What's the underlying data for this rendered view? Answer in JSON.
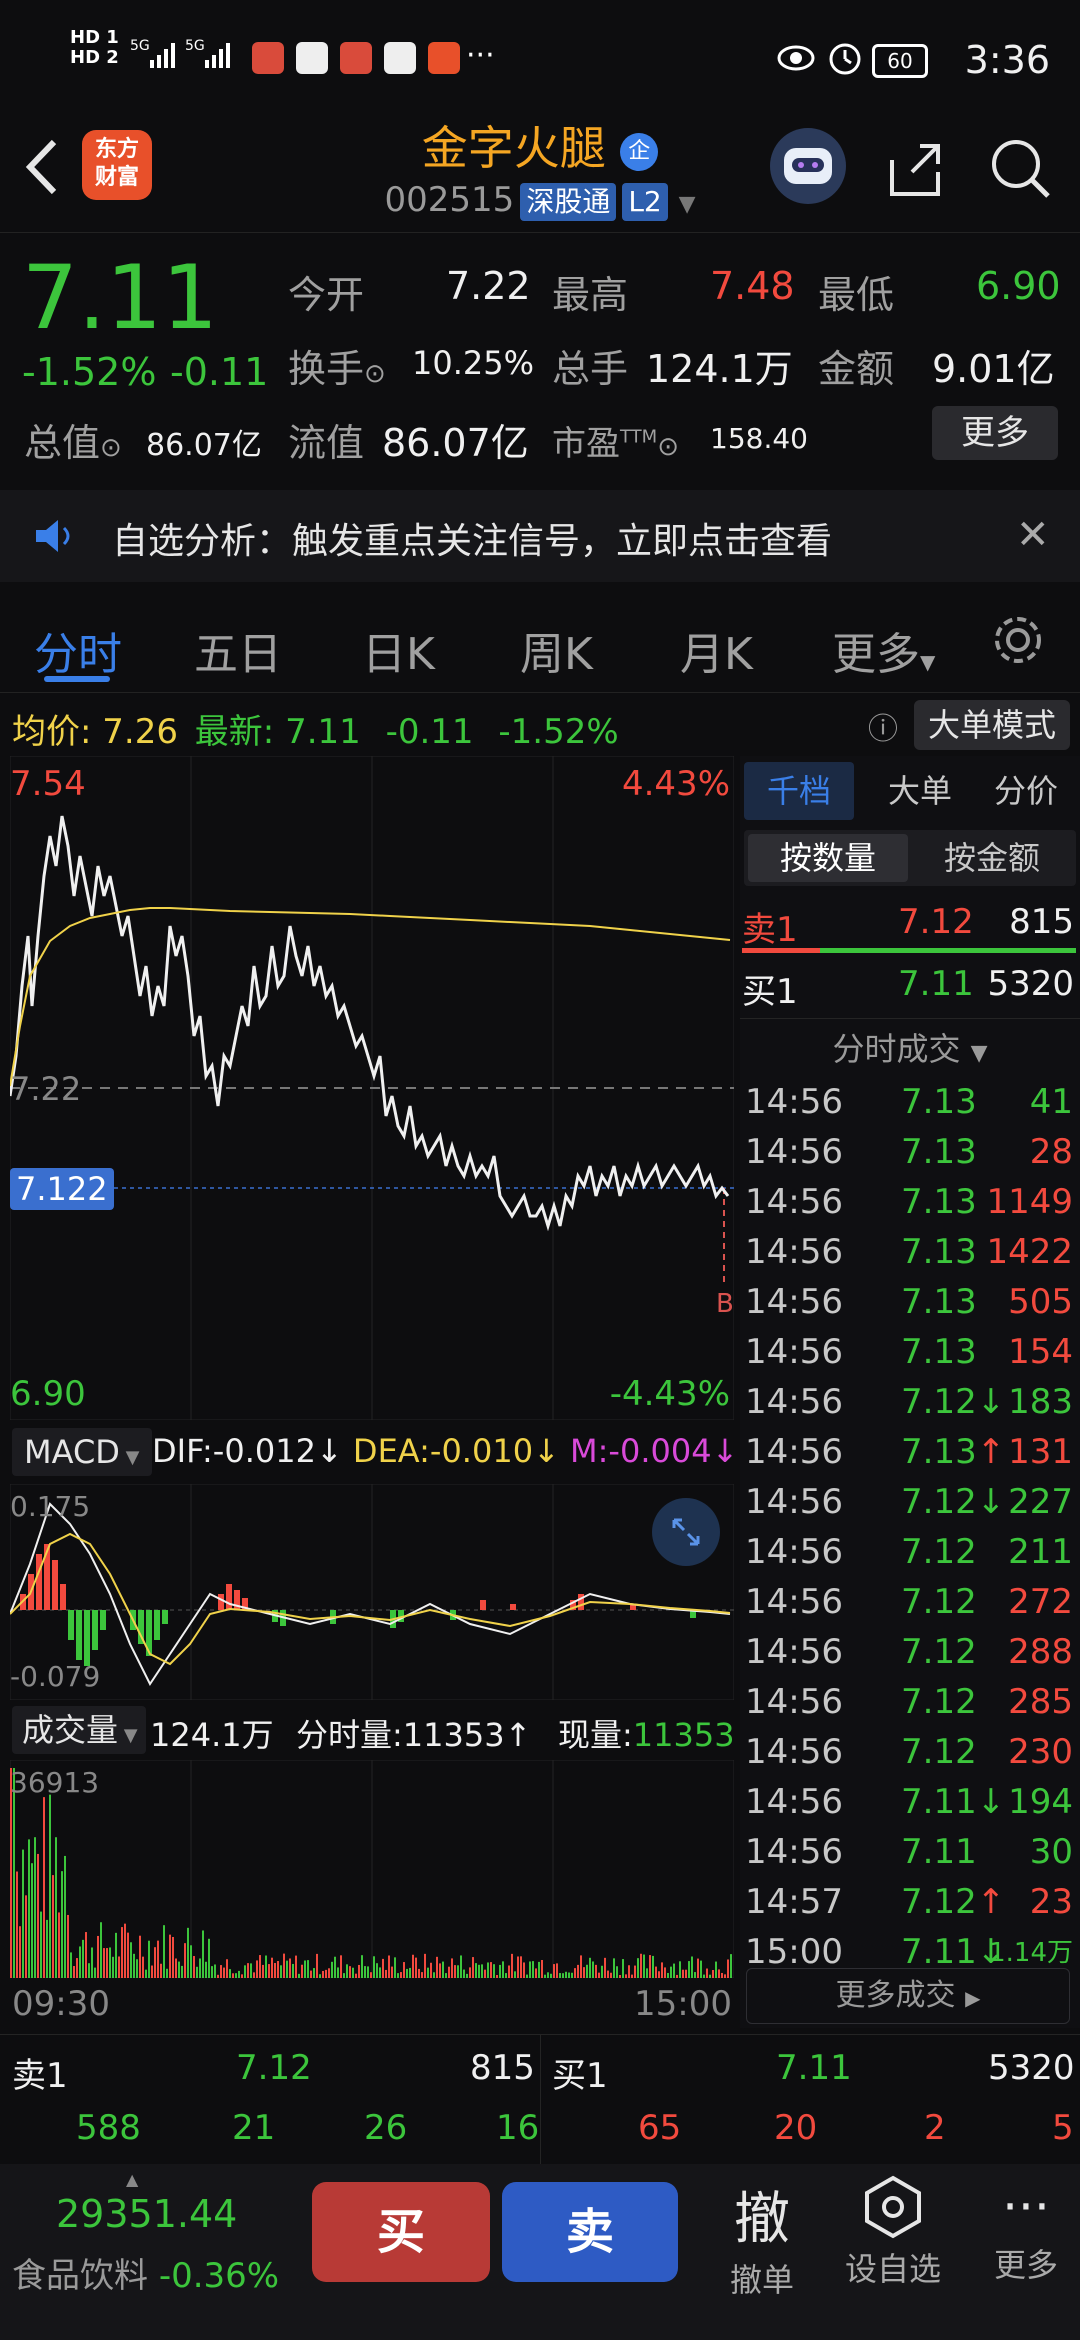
{
  "status_bar": {
    "time": "3:36",
    "battery": "60",
    "hd1": "HD 1",
    "hd2": "HD 2",
    "signal": "5G",
    "dots": "···"
  },
  "header": {
    "logo": "东方\n财富",
    "stock_name": "金字火腿",
    "name_badge": "企",
    "code": "002515",
    "market_tag": "深股通",
    "level_tag": "L2"
  },
  "quote": {
    "price": "7.11",
    "change_pct": "-1.52%",
    "change": "-0.11",
    "open_label": "今开",
    "open": "7.22",
    "high_label": "最高",
    "high": "7.48",
    "low_label": "最低",
    "low": "6.90",
    "turnover_label": "换手",
    "turnover": "10.25%",
    "volume_label": "总手",
    "volume": "124.1万",
    "amount_label": "金额",
    "amount": "9.01亿",
    "total_value_label": "总值",
    "total_value": "86.07亿",
    "float_value_label": "流值",
    "float_value": "86.07亿",
    "pe_label": "市盈",
    "pe_sup": "TTM",
    "pe": "158.40",
    "more_button": "更多"
  },
  "notice": {
    "text": "自选分析：触发重点关注信号，立即点击查看"
  },
  "tabs": [
    {
      "label": "分时",
      "active": true
    },
    {
      "label": "五日"
    },
    {
      "label": "日K"
    },
    {
      "label": "周K"
    },
    {
      "label": "月K"
    },
    {
      "label": "更多"
    }
  ],
  "info_bar": {
    "avg_label": "均价:",
    "avg": "7.26",
    "latest_label": "最新:",
    "latest": "7.11",
    "change": "-0.11",
    "change_pct": "-1.52%",
    "mode_button": "大单模式"
  },
  "chart": {
    "y_top": "7.54",
    "pct_top": "4.43%",
    "y_mid": "7.22",
    "cursor_price": "7.122",
    "y_bottom": "6.90",
    "pct_bottom": "-4.43%",
    "b_marker": "B",
    "time_start": "09:30",
    "time_end": "15:00"
  },
  "macd": {
    "selector": "MACD",
    "dif": "DIF:-0.012",
    "dea": "DEA:-0.010",
    "m": "M:-0.004",
    "top": "0.175",
    "bottom": "-0.079"
  },
  "volume": {
    "selector": "成交量",
    "total": "124.1万",
    "tick_vol": "分时量:11353↑",
    "now_label": "现量:",
    "now": "11353",
    "top": "36913"
  },
  "right_panel": {
    "tabs": [
      "千档",
      "大单",
      "分价"
    ],
    "sub_tabs": [
      "按数量",
      "按金额"
    ],
    "sell1": {
      "label": "卖1",
      "price": "7.12",
      "vol": "815"
    },
    "buy1": {
      "label": "买1",
      "price": "7.11",
      "vol": "5320"
    },
    "trades_header": "分时成交",
    "more_trades": "更多成交",
    "trades": [
      {
        "t": "14:56",
        "p": "7.13",
        "v": "41",
        "vc": "green",
        "a": ""
      },
      {
        "t": "14:56",
        "p": "7.13",
        "v": "28",
        "vc": "red",
        "a": ""
      },
      {
        "t": "14:56",
        "p": "7.13",
        "v": "1149",
        "vc": "red",
        "a": ""
      },
      {
        "t": "14:56",
        "p": "7.13",
        "v": "1422",
        "vc": "red",
        "a": ""
      },
      {
        "t": "14:56",
        "p": "7.13",
        "v": "505",
        "vc": "red",
        "a": ""
      },
      {
        "t": "14:56",
        "p": "7.13",
        "v": "154",
        "vc": "red",
        "a": ""
      },
      {
        "t": "14:56",
        "p": "7.12",
        "v": "183",
        "vc": "green",
        "a": "↓"
      },
      {
        "t": "14:56",
        "p": "7.13",
        "v": "131",
        "vc": "red",
        "a": "↑"
      },
      {
        "t": "14:56",
        "p": "7.12",
        "v": "227",
        "vc": "green",
        "a": "↓"
      },
      {
        "t": "14:56",
        "p": "7.12",
        "v": "211",
        "vc": "green",
        "a": ""
      },
      {
        "t": "14:56",
        "p": "7.12",
        "v": "272",
        "vc": "red",
        "a": ""
      },
      {
        "t": "14:56",
        "p": "7.12",
        "v": "288",
        "vc": "red",
        "a": ""
      },
      {
        "t": "14:56",
        "p": "7.12",
        "v": "285",
        "vc": "red",
        "a": ""
      },
      {
        "t": "14:56",
        "p": "7.12",
        "v": "230",
        "vc": "red",
        "a": ""
      },
      {
        "t": "14:56",
        "p": "7.11",
        "v": "194",
        "vc": "green",
        "a": "↓"
      },
      {
        "t": "14:56",
        "p": "7.11",
        "v": "30",
        "vc": "green",
        "a": ""
      },
      {
        "t": "14:57",
        "p": "7.12",
        "v": "23",
        "vc": "red",
        "a": "↑"
      },
      {
        "t": "15:00",
        "p": "7.11",
        "v": "1.14万",
        "vc": "green",
        "a": "↓"
      }
    ]
  },
  "order_book_bottom": {
    "sell_label": "卖1",
    "sell_price": "7.12",
    "sell_vol": "815",
    "buy_label": "买1",
    "buy_price": "7.11",
    "buy_vol": "5320",
    "sell_nums": [
      "588",
      "21",
      "26",
      "16"
    ],
    "buy_nums": [
      "65",
      "20",
      "2",
      "5"
    ]
  },
  "bottom_bar": {
    "index_value": "29351.44",
    "index_name": "食品饮料",
    "index_change": "-0.36%",
    "buy": "买",
    "sell": "卖",
    "cancel_icon": "撤",
    "cancel_label": "撤单",
    "watch_label": "设自选",
    "more_label": "更多"
  },
  "colors": {
    "up": "#f24a3e",
    "down": "#3cc53c",
    "accent": "#3a7fe8",
    "avg": "#f0d24a"
  }
}
